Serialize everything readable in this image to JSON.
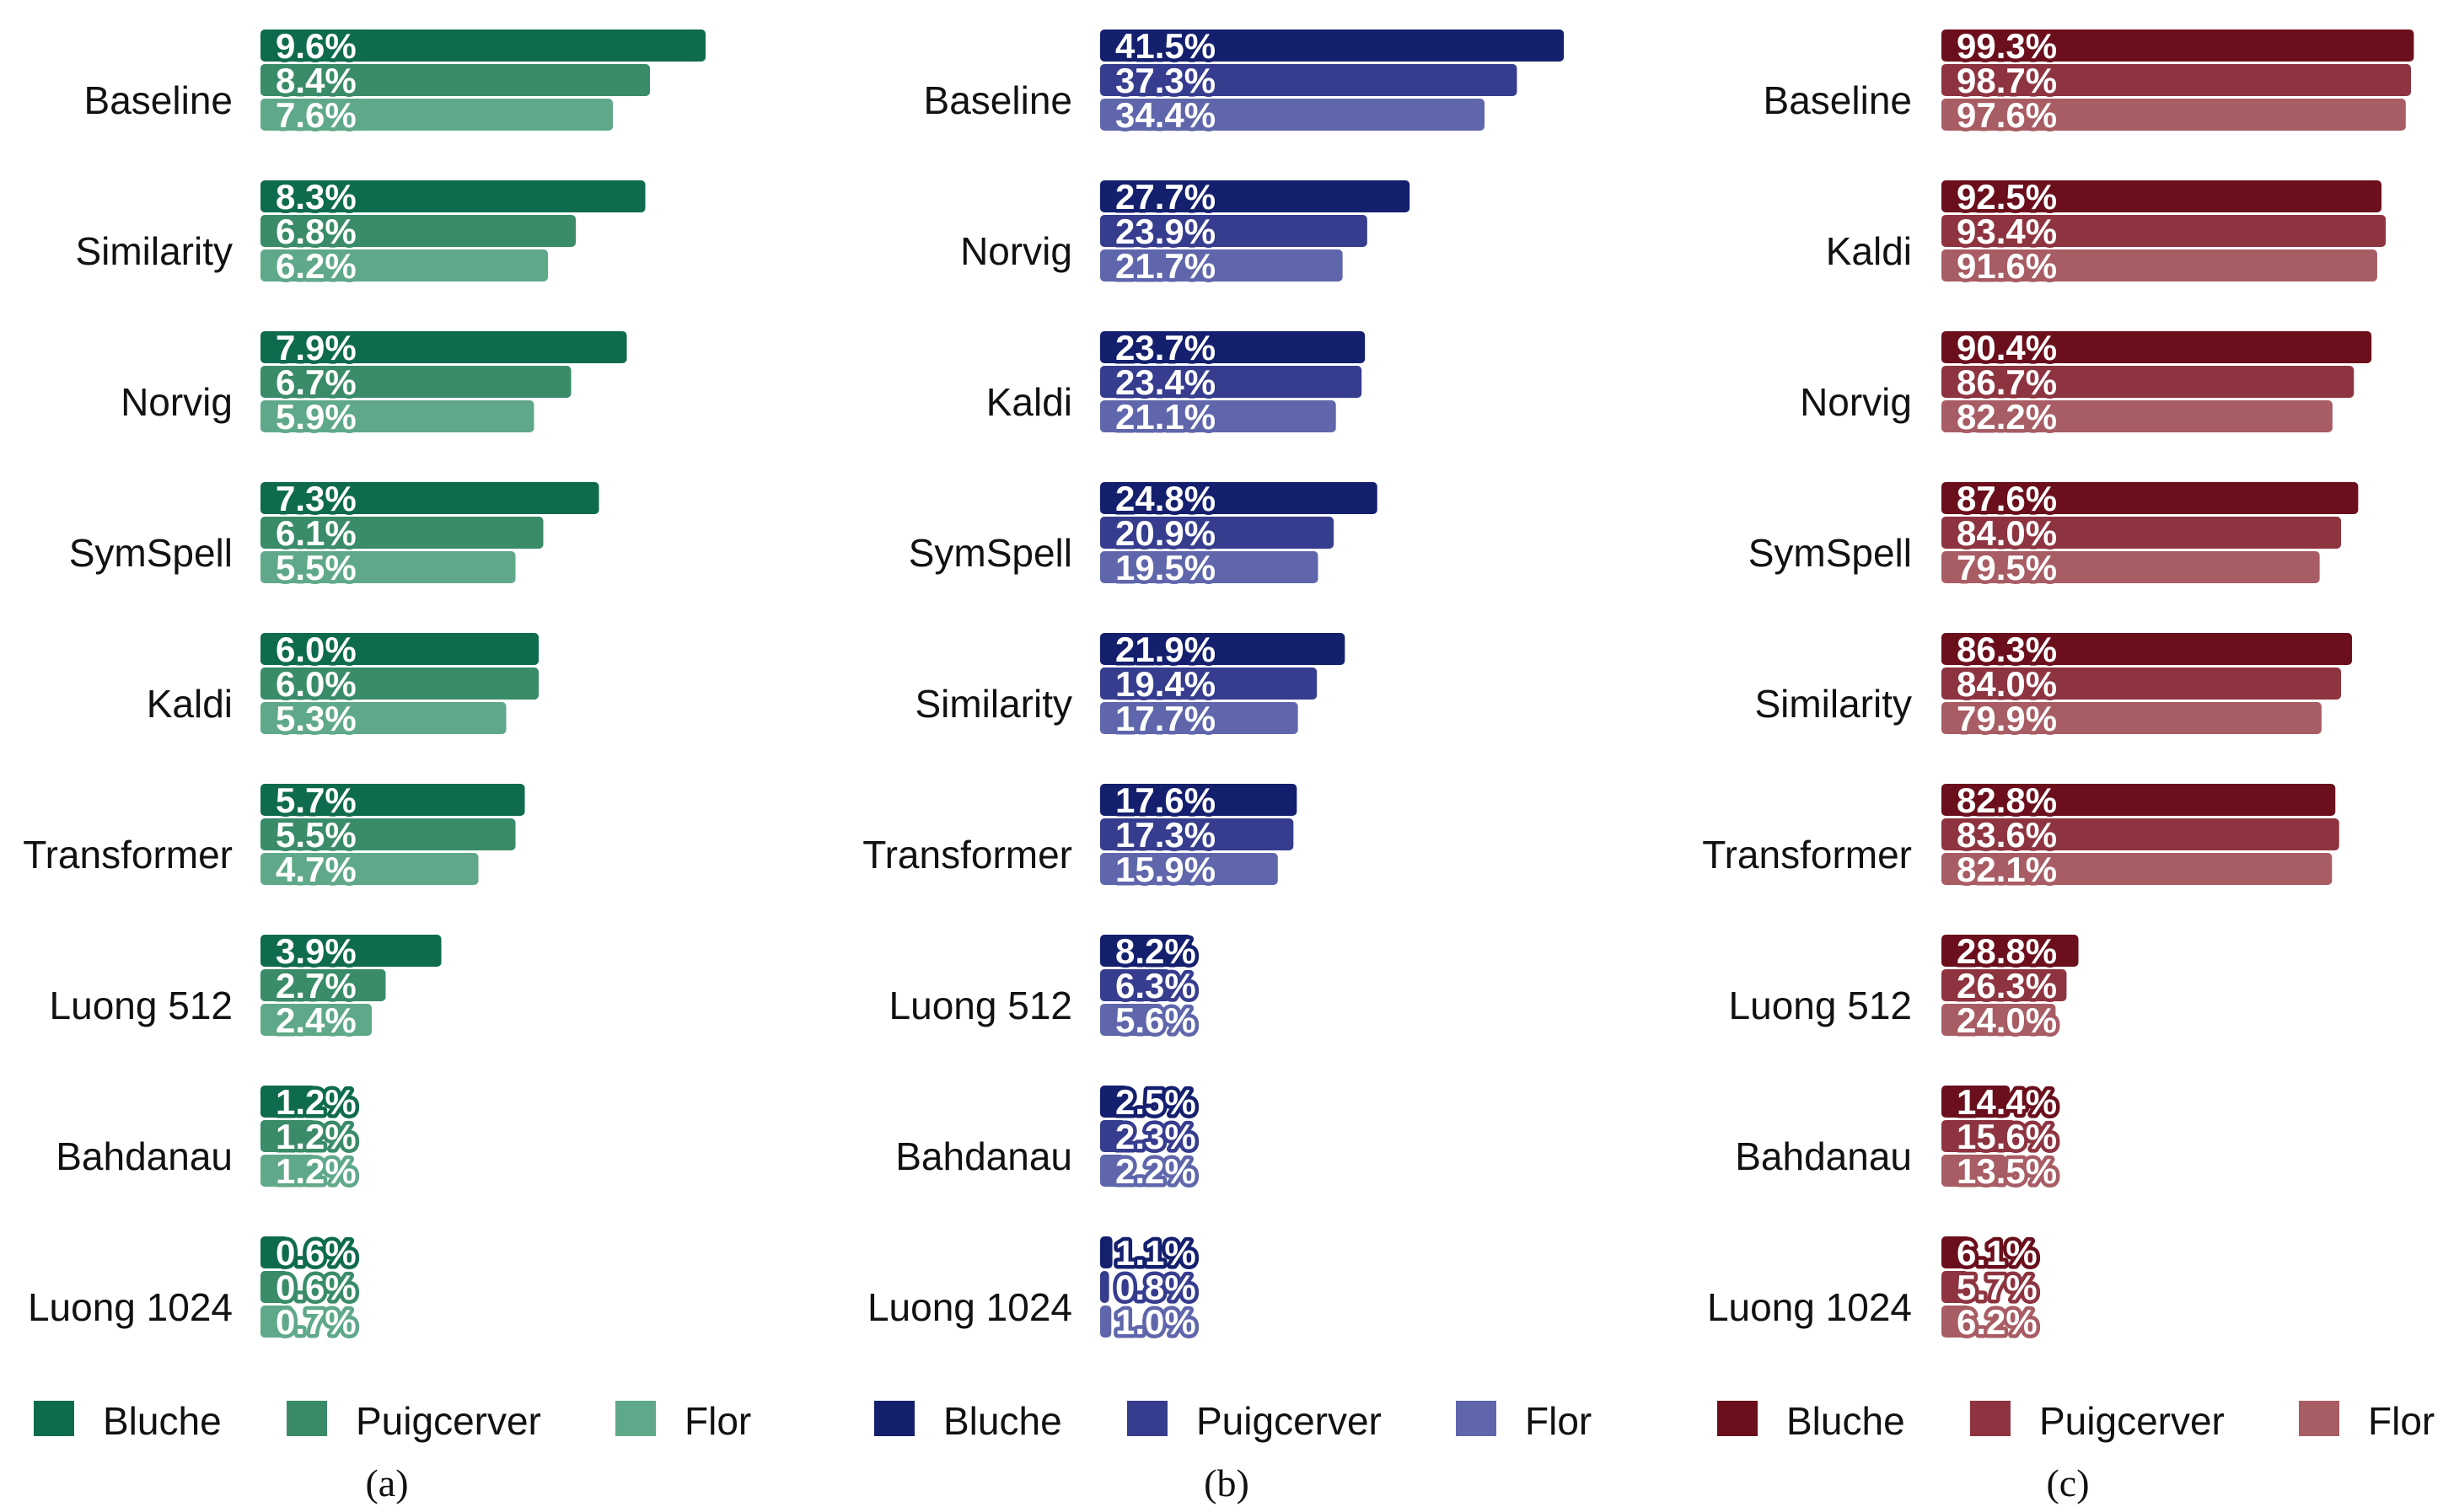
{
  "chart_data": [
    {
      "type": "bar",
      "orientation": "horizontal",
      "panel_label": "(a)",
      "categories": [
        "Baseline",
        "Similarity",
        "Norvig",
        "SymSpell",
        "Kaldi",
        "Transformer",
        "Luong 512",
        "Bahdanau",
        "Luong 1024"
      ],
      "series": [
        {
          "name": "Bluche",
          "color": "#0f6b4e",
          "values": [
            9.6,
            8.3,
            7.9,
            7.3,
            6.0,
            5.7,
            3.9,
            1.2,
            0.6
          ]
        },
        {
          "name": "Puigcerver",
          "color": "#3a8c69",
          "values": [
            8.4,
            6.8,
            6.7,
            6.1,
            6.0,
            5.5,
            2.7,
            1.2,
            0.6
          ]
        },
        {
          "name": "Flor",
          "color": "#5fa98a",
          "values": [
            7.6,
            6.2,
            5.9,
            5.5,
            5.3,
            4.7,
            2.4,
            1.2,
            0.7
          ]
        }
      ],
      "xlim": [
        0,
        10
      ],
      "legend": "bottom"
    },
    {
      "type": "bar",
      "orientation": "horizontal",
      "panel_label": "(b)",
      "categories": [
        "Baseline",
        "Norvig",
        "Kaldi",
        "SymSpell",
        "Similarity",
        "Transformer",
        "Luong 512",
        "Bahdanau",
        "Luong 1024"
      ],
      "series": [
        {
          "name": "Bluche",
          "color": "#141f6e",
          "values": [
            41.5,
            27.7,
            23.7,
            24.8,
            21.9,
            17.6,
            8.2,
            2.5,
            1.1
          ]
        },
        {
          "name": "Puigcerver",
          "color": "#363d8f",
          "values": [
            37.3,
            23.9,
            23.4,
            20.9,
            19.4,
            17.3,
            6.3,
            2.3,
            0.8
          ]
        },
        {
          "name": "Flor",
          "color": "#5f66ab",
          "values": [
            34.4,
            21.7,
            21.1,
            19.5,
            17.7,
            15.9,
            5.6,
            2.2,
            1.0
          ]
        }
      ],
      "xlim": [
        0,
        43
      ],
      "legend": "bottom"
    },
    {
      "type": "bar",
      "orientation": "horizontal",
      "panel_label": "(c)",
      "categories": [
        "Baseline",
        "Kaldi",
        "Norvig",
        "SymSpell",
        "Similarity",
        "Transformer",
        "Luong 512",
        "Bahdanau",
        "Luong 1024"
      ],
      "series": [
        {
          "name": "Bluche",
          "color": "#6b0f1c",
          "values": [
            99.3,
            92.5,
            90.4,
            87.6,
            86.3,
            82.8,
            28.8,
            14.4,
            6.1
          ]
        },
        {
          "name": "Puigcerver",
          "color": "#8e3440",
          "values": [
            98.7,
            93.4,
            86.7,
            84.0,
            84.0,
            83.6,
            26.3,
            15.6,
            5.7
          ]
        },
        {
          "name": "Flor",
          "color": "#a85c64",
          "values": [
            97.6,
            91.6,
            82.2,
            79.5,
            79.9,
            82.1,
            24.0,
            13.5,
            6.2
          ]
        }
      ],
      "xlim": [
        0,
        101
      ],
      "legend": "bottom"
    }
  ]
}
